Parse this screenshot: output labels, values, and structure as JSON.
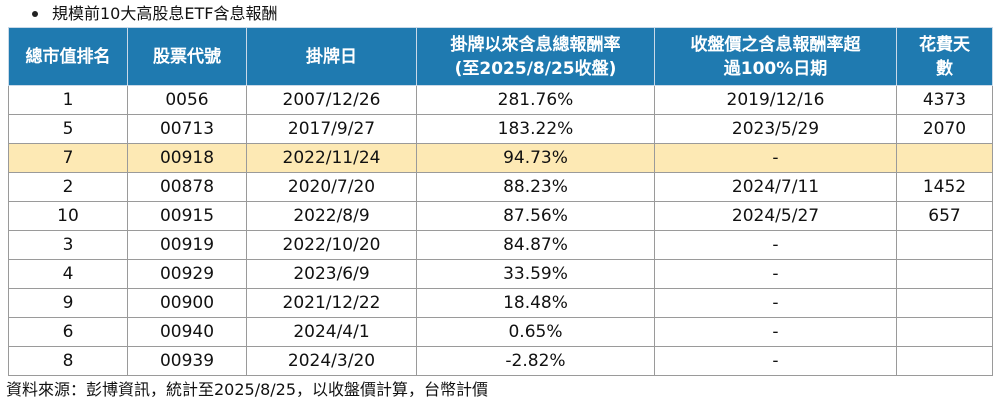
{
  "title": "規模前10大高股息ETF含息報酬",
  "headers": [
    "總市值排名",
    "股票代號",
    "掛牌日",
    "掛牌以來含息總報酬率\n(至2025/8/25收盤)",
    "收盤價之含息報酬率超\n過100%日期",
    "花費天\n數"
  ],
  "rows": [
    [
      "1",
      "0056",
      "2007/12/26",
      "281.76%",
      "2019/12/16",
      "4373"
    ],
    [
      "5",
      "00713",
      "2017/9/27",
      "183.22%",
      "2023/5/29",
      "2070"
    ],
    [
      "7",
      "00918",
      "2022/11/24",
      "94.73%",
      "-",
      ""
    ],
    [
      "2",
      "00878",
      "2020/7/20",
      "88.23%",
      "2024/7/11",
      "1452"
    ],
    [
      "10",
      "00915",
      "2022/8/9",
      "87.56%",
      "2024/5/27",
      "657"
    ],
    [
      "3",
      "00919",
      "2022/10/20",
      "84.87%",
      "-",
      ""
    ],
    [
      "4",
      "00929",
      "2023/6/9",
      "33.59%",
      "-",
      ""
    ],
    [
      "9",
      "00900",
      "2021/12/22",
      "18.48%",
      "-",
      ""
    ],
    [
      "6",
      "00940",
      "2024/4/1",
      "0.65%",
      "-",
      ""
    ],
    [
      "8",
      "00939",
      "2024/3/20",
      "-2.82%",
      "-",
      ""
    ]
  ],
  "highlight_row_index": 2,
  "colors": {
    "header_bg": "#1f7ab0",
    "header_text": "#ffffff",
    "highlight_bg": "#fde9b4"
  },
  "source_note": "資料來源：彭博資訊，統計至2025/8/25，以收盤價計算，台幣計價"
}
